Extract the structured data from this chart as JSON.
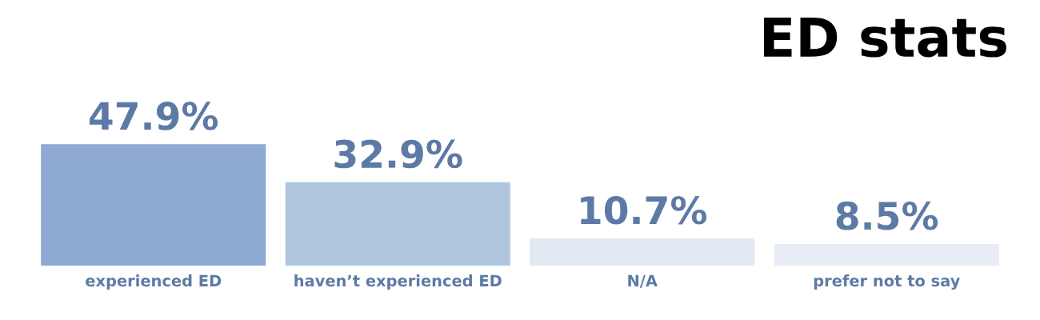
{
  "chart_data": {
    "type": "bar",
    "title": "ED stats",
    "categories": [
      "experienced ED",
      "haven’t experienced ED",
      "N/A",
      "prefer not to say"
    ],
    "values": [
      47.9,
      32.9,
      10.7,
      8.5
    ],
    "colors": [
      "#8eaad2",
      "#b0c6df",
      "#e3e9f3",
      "#e8edf5"
    ],
    "value_labels": [
      "47.9%",
      "32.9%",
      "10.7%",
      "8.5%"
    ]
  }
}
